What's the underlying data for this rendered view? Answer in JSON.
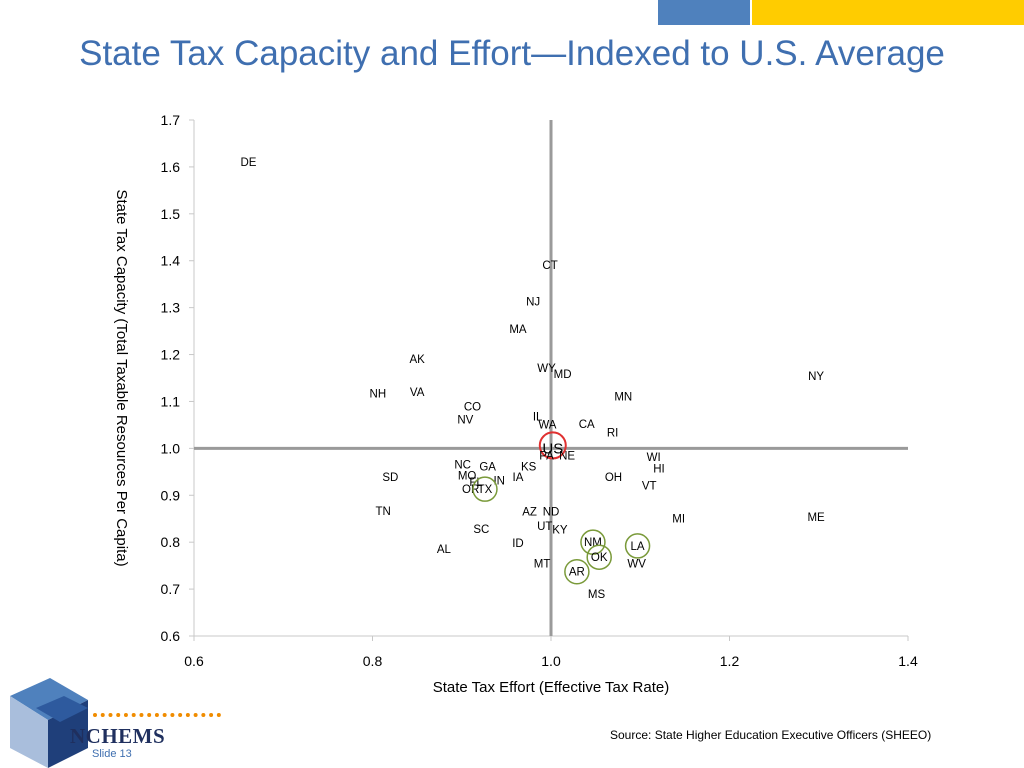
{
  "slide": {
    "title": "State Tax Capacity and Effort—Indexed to U.S. Average",
    "source": "Source:  State Higher Education Executive Officers (SHEEO)",
    "logo": "NCHEMS",
    "slide_number": "Slide 13"
  },
  "colors": {
    "title": "#3f6fb0",
    "bar_blue": "#4f81bd",
    "bar_yellow": "#ffcc00",
    "us_circle": "#e03030",
    "circle": "#7a9a3a",
    "refline": "#9a9a9a"
  },
  "chart_data": {
    "type": "scatter",
    "xlabel": "State Tax Effort (Effective Tax Rate)",
    "ylabel": "State Tax Capacity (Total Taxable Resources Per Capita)",
    "xlim": [
      0.6,
      1.4
    ],
    "ylim": [
      0.6,
      1.7
    ],
    "xticks": [
      "0.6",
      "0.8",
      "1.0",
      "1.2",
      "1.4"
    ],
    "yticks": [
      "0.6",
      "0.7",
      "0.8",
      "0.9",
      "1.0",
      "1.1",
      "1.2",
      "1.3",
      "1.4",
      "1.5",
      "1.6",
      "1.7"
    ],
    "grid": false,
    "reference_lines": {
      "x": 1.0,
      "y": 1.0
    },
    "points": [
      {
        "label": "DE",
        "x": 0.661,
        "y": 1.61
      },
      {
        "label": "CT",
        "x": 0.999,
        "y": 1.391
      },
      {
        "label": "NJ",
        "x": 0.98,
        "y": 1.313
      },
      {
        "label": "MA",
        "x": 0.963,
        "y": 1.254
      },
      {
        "label": "AK",
        "x": 0.85,
        "y": 1.19
      },
      {
        "label": "WY",
        "x": 0.995,
        "y": 1.171
      },
      {
        "label": "MD",
        "x": 1.013,
        "y": 1.158
      },
      {
        "label": "NY",
        "x": 1.297,
        "y": 1.154
      },
      {
        "label": "NH",
        "x": 0.806,
        "y": 1.117
      },
      {
        "label": "VA",
        "x": 0.85,
        "y": 1.12
      },
      {
        "label": "MN",
        "x": 1.081,
        "y": 1.111
      },
      {
        "label": "CO",
        "x": 0.912,
        "y": 1.089
      },
      {
        "label": "NV",
        "x": 0.904,
        "y": 1.062
      },
      {
        "label": "IL",
        "x": 0.985,
        "y": 1.068
      },
      {
        "label": "WA",
        "x": 0.996,
        "y": 1.051
      },
      {
        "label": "CA",
        "x": 1.04,
        "y": 1.052
      },
      {
        "label": "RI",
        "x": 1.069,
        "y": 1.034
      },
      {
        "label": "US",
        "x": 1.002,
        "y": 1.002,
        "circle": "us"
      },
      {
        "label": "PA",
        "x": 0.995,
        "y": 0.985
      },
      {
        "label": "NE",
        "x": 1.018,
        "y": 0.985
      },
      {
        "label": "WI",
        "x": 1.115,
        "y": 0.982
      },
      {
        "label": "NC",
        "x": 0.901,
        "y": 0.966
      },
      {
        "label": "GA",
        "x": 0.929,
        "y": 0.961
      },
      {
        "label": "KS",
        "x": 0.975,
        "y": 0.961
      },
      {
        "label": "HI",
        "x": 1.121,
        "y": 0.957
      },
      {
        "label": "SD",
        "x": 0.82,
        "y": 0.939
      },
      {
        "label": "MO",
        "x": 0.906,
        "y": 0.942
      },
      {
        "label": "IA",
        "x": 0.963,
        "y": 0.939
      },
      {
        "label": "OH",
        "x": 1.07,
        "y": 0.939
      },
      {
        "label": "FL",
        "x": 0.916,
        "y": 0.928
      },
      {
        "label": "IN",
        "x": 0.942,
        "y": 0.931
      },
      {
        "label": "VT",
        "x": 1.11,
        "y": 0.921
      },
      {
        "label": "OR",
        "x": 0.91,
        "y": 0.913
      },
      {
        "label": "TX",
        "x": 0.926,
        "y": 0.913,
        "circle": "green"
      },
      {
        "label": "TN",
        "x": 0.812,
        "y": 0.866
      },
      {
        "label": "AZ",
        "x": 0.976,
        "y": 0.865
      },
      {
        "label": "ND",
        "x": 1.0,
        "y": 0.865
      },
      {
        "label": "MI",
        "x": 1.143,
        "y": 0.851
      },
      {
        "label": "ME",
        "x": 1.297,
        "y": 0.854
      },
      {
        "label": "UT",
        "x": 0.993,
        "y": 0.834
      },
      {
        "label": "KY",
        "x": 1.01,
        "y": 0.827
      },
      {
        "label": "SC",
        "x": 0.922,
        "y": 0.828
      },
      {
        "label": "ID",
        "x": 0.963,
        "y": 0.798
      },
      {
        "label": "NM",
        "x": 1.047,
        "y": 0.8,
        "circle": "green"
      },
      {
        "label": "LA",
        "x": 1.097,
        "y": 0.792,
        "circle": "green"
      },
      {
        "label": "AL",
        "x": 0.88,
        "y": 0.785
      },
      {
        "label": "OK",
        "x": 1.054,
        "y": 0.768,
        "circle": "green"
      },
      {
        "label": "MT",
        "x": 0.99,
        "y": 0.755
      },
      {
        "label": "WV",
        "x": 1.096,
        "y": 0.755
      },
      {
        "label": "AR",
        "x": 1.029,
        "y": 0.737,
        "circle": "green"
      },
      {
        "label": "MS",
        "x": 1.051,
        "y": 0.69
      }
    ]
  }
}
